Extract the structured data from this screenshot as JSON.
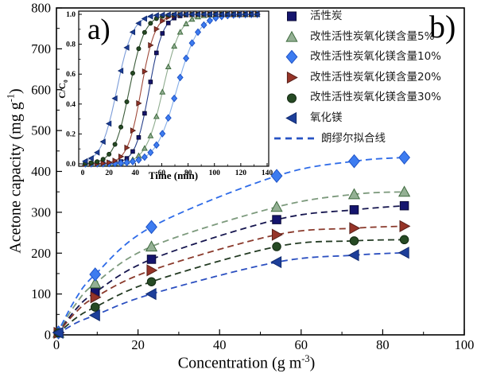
{
  "figure": {
    "panel_label_a": "a)",
    "panel_label_b": "b)"
  },
  "chart_data": {
    "type": "scatter",
    "main": {
      "xlabel": {
        "text": "Concentration (g m",
        "sup": "-3",
        "end": ")"
      },
      "ylabel": {
        "text": "Acetone capacity (mg g",
        "sup": "-1",
        "end": ")"
      },
      "xlim": [
        0,
        100
      ],
      "ylim": [
        0,
        800
      ],
      "x_major_ticks": [
        0,
        20,
        40,
        60,
        80,
        100
      ],
      "x_minor_step": 10,
      "y_major_ticks": [
        0,
        100,
        200,
        300,
        400,
        500,
        600,
        700,
        800
      ],
      "y_minor_step": 50,
      "grid": false,
      "concentrations": [
        0.5,
        9.5,
        23.3,
        54,
        73,
        85.3
      ],
      "series": [
        {
          "name": "活性炭",
          "marker": "square",
          "fill": "#15156e",
          "edge": "#090936",
          "fit_color": "#16164f",
          "values": [
            5,
            104,
            185,
            282,
            306,
            316
          ],
          "inset": {
            "t50": 50.5,
            "k": 5.2,
            "line": "#27408b"
          }
        },
        {
          "name": "改性活性炭氧化镁含量5%",
          "marker": "triangle-up",
          "fill": "#94b094",
          "edge": "#3f6b3f",
          "fit_color": "#7d9a7d",
          "values": [
            5,
            126,
            216,
            313,
            344,
            350
          ],
          "inset": {
            "t50": 61,
            "k": 6.5,
            "line": "#8fac8f"
          }
        },
        {
          "name": "改性活性炭氧化镁含量10%",
          "marker": "diamond",
          "fill": "#3d7cf0",
          "edge": "#1f54c8",
          "fit_color": "#2e6be8",
          "values": [
            6,
            148,
            264,
            389,
            425,
            434
          ],
          "inset": {
            "t50": 71.5,
            "k": 8,
            "line": "#85aee8"
          }
        },
        {
          "name": "改性活性炭氧化镁含量20%",
          "marker": "triangle-right",
          "fill": "#963428",
          "edge": "#58201a",
          "fit_color": "#8a3a2c",
          "values": [
            5,
            92,
            158,
            245,
            261,
            266
          ],
          "inset": {
            "t50": 44.5,
            "k": 5.2,
            "line": "#a04a3a"
          }
        },
        {
          "name": "改性活性炭氧化镁含量30%",
          "marker": "circle",
          "fill": "#264a24",
          "edge": "#132a12",
          "fit_color": "#223a22",
          "values": [
            5,
            68,
            130,
            216,
            230,
            233
          ],
          "inset": {
            "t50": 35.5,
            "k": 5.8,
            "line": "#3c5c3a"
          }
        },
        {
          "name": "氧化镁",
          "marker": "triangle-left",
          "fill": "#1d3f9a",
          "edge": "#102a6e",
          "fit_color": "#2b4fc0",
          "values": [
            5,
            48,
            100,
            178,
            195,
            201
          ],
          "inset": {
            "t50": 26,
            "k": 6,
            "line": "#7a9bd8"
          }
        }
      ],
      "fit_line": {
        "label": "朗缪尔拟合线",
        "color": "#2753c4"
      }
    },
    "inset": {
      "xlabel": "Time (min)",
      "ylabel": {
        "text": "C/C",
        "sub": "0"
      },
      "xlim": [
        0,
        140
      ],
      "ylim": [
        0,
        1
      ],
      "x_major_ticks": [
        0,
        20,
        40,
        60,
        80,
        100,
        120,
        140
      ],
      "x_minor_step": 10,
      "y_major_ticks": [
        0,
        0.2,
        0.4,
        0.6,
        0.8,
        1
      ],
      "y_minor_step": 0.1,
      "grid": false,
      "marker_times": {
        "start": 2,
        "step": 4.5,
        "end": 132.5
      }
    }
  }
}
